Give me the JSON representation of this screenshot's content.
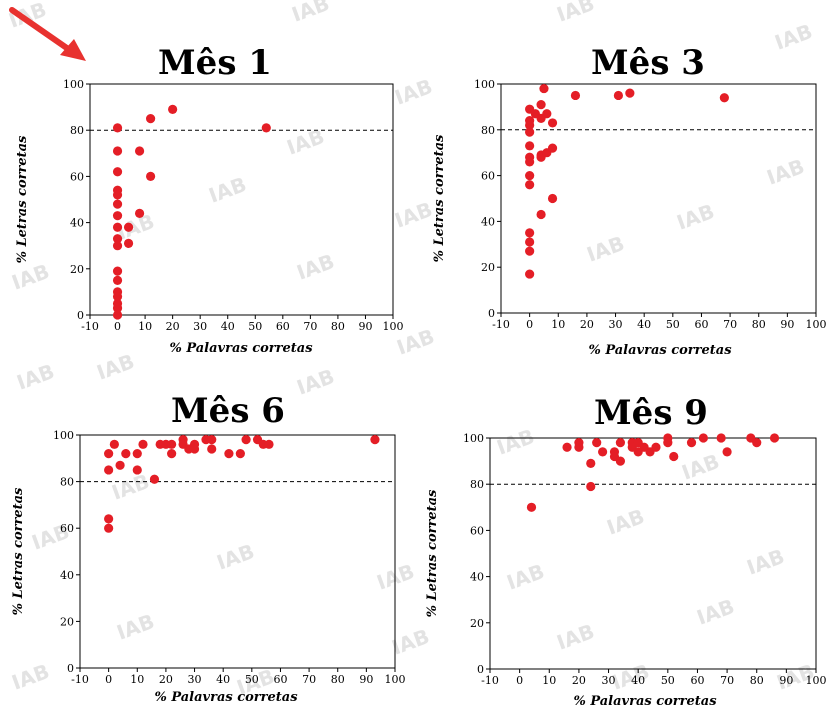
{
  "colors": {
    "point": "#e41e26",
    "arrow": "#e8322f",
    "threshold": "#000000",
    "watermark": "#e3e3e3"
  },
  "annotations": {
    "arrow_icon": "red-arrow-icon",
    "watermark_text": "IAB"
  },
  "chart_data": [
    {
      "type": "scatter",
      "title": "Mês 1",
      "xlabel": "% Palavras corretas",
      "ylabel": "% Letras corretas",
      "xlim": [
        -10,
        100
      ],
      "ylim": [
        0,
        100
      ],
      "xticks": [
        -10,
        0,
        10,
        20,
        30,
        40,
        50,
        60,
        70,
        80,
        90,
        100
      ],
      "yticks": [
        0,
        20,
        40,
        60,
        80,
        100
      ],
      "threshold": 80,
      "grid": false,
      "points": [
        [
          0,
          81
        ],
        [
          0,
          71
        ],
        [
          0,
          62
        ],
        [
          0,
          54
        ],
        [
          0,
          52
        ],
        [
          0,
          48
        ],
        [
          0,
          43
        ],
        [
          0,
          38
        ],
        [
          0,
          33
        ],
        [
          0,
          30
        ],
        [
          0,
          19
        ],
        [
          0,
          15
        ],
        [
          0,
          10
        ],
        [
          0,
          8
        ],
        [
          0,
          5
        ],
        [
          0,
          3
        ],
        [
          0,
          0
        ],
        [
          4,
          38
        ],
        [
          4,
          31
        ],
        [
          8,
          71
        ],
        [
          8,
          44
        ],
        [
          12,
          85
        ],
        [
          12,
          60
        ],
        [
          20,
          89
        ],
        [
          54,
          81
        ]
      ]
    },
    {
      "type": "scatter",
      "title": "Mês 3",
      "xlabel": "% Palavras corretas",
      "ylabel": "% Letras corretas",
      "xlim": [
        -10,
        100
      ],
      "ylim": [
        0,
        100
      ],
      "xticks": [
        -10,
        0,
        10,
        20,
        30,
        40,
        50,
        60,
        70,
        80,
        90,
        100
      ],
      "yticks": [
        0,
        20,
        40,
        60,
        80,
        100
      ],
      "threshold": 80,
      "grid": false,
      "points": [
        [
          0,
          89
        ],
        [
          0,
          84
        ],
        [
          0,
          82
        ],
        [
          0,
          79
        ],
        [
          0,
          73
        ],
        [
          0,
          68
        ],
        [
          0,
          66
        ],
        [
          0,
          60
        ],
        [
          0,
          56
        ],
        [
          0,
          35
        ],
        [
          0,
          31
        ],
        [
          0,
          27
        ],
        [
          0,
          17
        ],
        [
          2,
          87
        ],
        [
          4,
          91
        ],
        [
          4,
          85
        ],
        [
          4,
          69
        ],
        [
          4,
          68
        ],
        [
          4,
          43
        ],
        [
          5,
          98
        ],
        [
          6,
          87
        ],
        [
          6,
          70
        ],
        [
          8,
          83
        ],
        [
          8,
          72
        ],
        [
          8,
          50
        ],
        [
          16,
          95
        ],
        [
          31,
          95
        ],
        [
          35,
          96
        ],
        [
          68,
          94
        ]
      ]
    },
    {
      "type": "scatter",
      "title": "Mês 6",
      "xlabel": "% Palavras corretas",
      "ylabel": "% Letras corretas",
      "xlim": [
        -10,
        100
      ],
      "ylim": [
        0,
        100
      ],
      "xticks": [
        -10,
        0,
        10,
        20,
        30,
        40,
        50,
        60,
        70,
        80,
        90,
        100
      ],
      "yticks": [
        0,
        20,
        40,
        60,
        80,
        100
      ],
      "threshold": 80,
      "grid": false,
      "points": [
        [
          0,
          92
        ],
        [
          0,
          85
        ],
        [
          0,
          64
        ],
        [
          0,
          60
        ],
        [
          2,
          96
        ],
        [
          4,
          87
        ],
        [
          6,
          92
        ],
        [
          10,
          92
        ],
        [
          10,
          85
        ],
        [
          12,
          96
        ],
        [
          16,
          81
        ],
        [
          18,
          96
        ],
        [
          20,
          96
        ],
        [
          22,
          96
        ],
        [
          22,
          92
        ],
        [
          26,
          98
        ],
        [
          26,
          96
        ],
        [
          28,
          94
        ],
        [
          30,
          94
        ],
        [
          30,
          96
        ],
        [
          34,
          98
        ],
        [
          36,
          98
        ],
        [
          36,
          94
        ],
        [
          42,
          92
        ],
        [
          46,
          92
        ],
        [
          48,
          98
        ],
        [
          52,
          98
        ],
        [
          54,
          96
        ],
        [
          56,
          96
        ],
        [
          93,
          98
        ]
      ]
    },
    {
      "type": "scatter",
      "title": "Mês 9",
      "xlabel": "% Palavras corretas",
      "ylabel": "% Letras corretas",
      "xlim": [
        -10,
        100
      ],
      "ylim": [
        0,
        100
      ],
      "xticks": [
        -10,
        0,
        10,
        20,
        30,
        40,
        50,
        60,
        70,
        80,
        90,
        100
      ],
      "yticks": [
        0,
        20,
        40,
        60,
        80,
        100
      ],
      "threshold": 80,
      "grid": false,
      "points": [
        [
          4,
          70
        ],
        [
          16,
          96
        ],
        [
          20,
          98
        ],
        [
          20,
          96
        ],
        [
          24,
          79
        ],
        [
          24,
          89
        ],
        [
          26,
          98
        ],
        [
          28,
          94
        ],
        [
          32,
          94
        ],
        [
          32,
          92
        ],
        [
          34,
          98
        ],
        [
          34,
          90
        ],
        [
          38,
          98
        ],
        [
          38,
          96
        ],
        [
          40,
          98
        ],
        [
          40,
          94
        ],
        [
          42,
          96
        ],
        [
          44,
          94
        ],
        [
          46,
          96
        ],
        [
          50,
          100
        ],
        [
          50,
          98
        ],
        [
          52,
          92
        ],
        [
          58,
          98
        ],
        [
          62,
          100
        ],
        [
          68,
          100
        ],
        [
          70,
          94
        ],
        [
          78,
          100
        ],
        [
          80,
          98
        ],
        [
          86,
          100
        ]
      ]
    }
  ]
}
